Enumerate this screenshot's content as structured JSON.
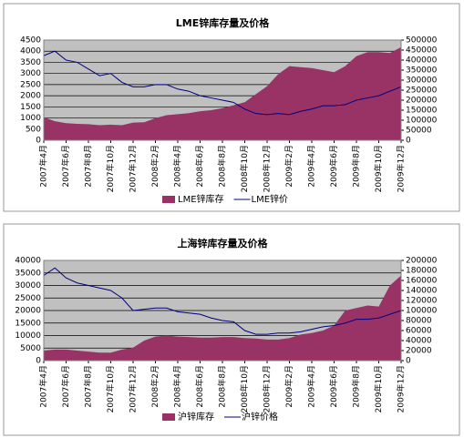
{
  "chart_data": [
    {
      "type": "combo",
      "title": "LME锌库存量及价格",
      "categories": [
        "2007年4月",
        null,
        "2007年6月",
        null,
        "2007年8月",
        null,
        "2007年10月",
        null,
        "2007年12月",
        null,
        "2008年2月",
        null,
        "2008年4月",
        null,
        "2008年6月",
        null,
        "2008年8月",
        null,
        "2008年10月",
        null,
        "2008年12月",
        null,
        "2009年2月",
        null,
        "2009年4月",
        null,
        "2009年6月",
        null,
        "2009年8月",
        null,
        "2009年10月",
        null,
        "2009年12月"
      ],
      "series": [
        {
          "name": "LME锌库存",
          "type": "area",
          "axis": "y2",
          "color": "#993366",
          "values": [
            115000,
            95000,
            85000,
            82000,
            80000,
            75000,
            78000,
            75000,
            88000,
            90000,
            110000,
            125000,
            130000,
            135000,
            145000,
            150000,
            160000,
            175000,
            190000,
            230000,
            270000,
            330000,
            370000,
            365000,
            360000,
            350000,
            340000,
            370000,
            420000,
            440000,
            440000,
            435000,
            465000
          ]
        },
        {
          "name": "LME锌价",
          "type": "line",
          "color": "#000080",
          "values": [
            3800,
            4000,
            3600,
            3500,
            3200,
            2900,
            3000,
            2600,
            2400,
            2400,
            2500,
            2500,
            2300,
            2200,
            2000,
            1900,
            1800,
            1700,
            1400,
            1200,
            1150,
            1200,
            1150,
            1300,
            1400,
            1550,
            1550,
            1600,
            1800,
            1900,
            2000,
            2200,
            2400
          ]
        }
      ],
      "ylim": [
        0,
        4500
      ],
      "yticks": [
        0,
        500,
        1000,
        1500,
        2000,
        2500,
        3000,
        3500,
        4000,
        4500
      ],
      "y2lim": [
        0,
        500000
      ],
      "y2ticks": [
        0,
        50000,
        100000,
        150000,
        200000,
        250000,
        300000,
        350000,
        400000,
        450000,
        500000
      ],
      "grid": true,
      "legend": "bottom"
    },
    {
      "type": "combo",
      "title": "上海锌库存量及价格",
      "categories": [
        "2007年4月",
        null,
        "2007年6月",
        null,
        "2007年8月",
        null,
        "2007年10月",
        null,
        "2007年12月",
        null,
        "2008年2月",
        null,
        "2008年4月",
        null,
        "2008年6月",
        null,
        "2008年8月",
        null,
        "2008年10月",
        null,
        "2008年12月",
        null,
        "2009年2月",
        null,
        "2009年4月",
        null,
        "2009年6月",
        null,
        "2009年8月",
        null,
        "2009年10月",
        null,
        "2009年12月"
      ],
      "series": [
        {
          "name": "沪锌库存",
          "type": "area",
          "axis": "y2",
          "color": "#993366",
          "values": [
            20000,
            22000,
            22000,
            20000,
            18000,
            16000,
            16000,
            22000,
            26000,
            40000,
            48000,
            50000,
            48000,
            47000,
            46000,
            46000,
            47000,
            47000,
            45000,
            44000,
            42000,
            42000,
            45000,
            52000,
            55000,
            60000,
            70000,
            100000,
            105000,
            110000,
            108000,
            150000,
            170000
          ]
        },
        {
          "name": "沪锌价格",
          "type": "line",
          "color": "#000080",
          "values": [
            34000,
            37000,
            33000,
            31000,
            30000,
            29000,
            28000,
            25000,
            20000,
            20500,
            21000,
            21000,
            19500,
            19000,
            18500,
            17000,
            16000,
            15500,
            12000,
            10500,
            10500,
            11000,
            11000,
            11500,
            12500,
            13500,
            14000,
            15000,
            16500,
            16500,
            17000,
            18500,
            20000
          ]
        }
      ],
      "ylim": [
        0,
        40000
      ],
      "yticks": [
        0,
        5000,
        10000,
        15000,
        20000,
        25000,
        30000,
        35000,
        40000
      ],
      "y2lim": [
        0,
        200000
      ],
      "y2ticks": [
        0,
        20000,
        40000,
        60000,
        80000,
        100000,
        120000,
        140000,
        160000,
        180000,
        200000
      ],
      "grid": true,
      "legend": "bottom"
    }
  ]
}
